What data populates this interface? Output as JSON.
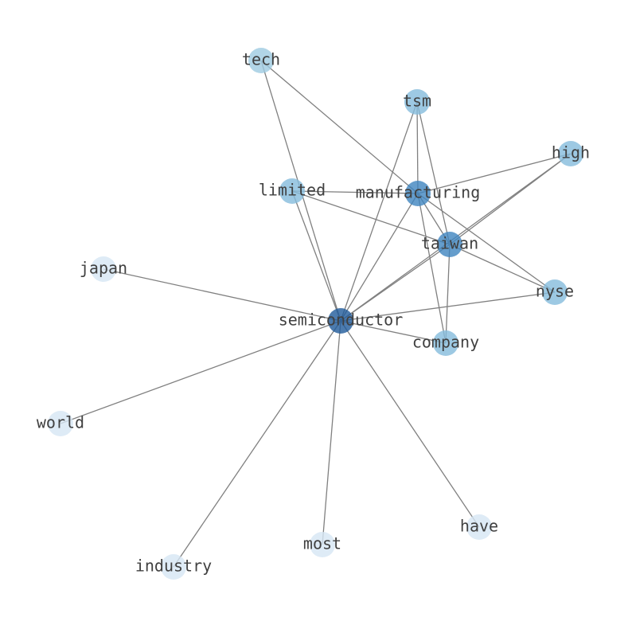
{
  "nodes": [
    {
      "label": "tech"
    },
    {
      "label": "tsm"
    },
    {
      "label": "high"
    },
    {
      "label": "limited"
    },
    {
      "label": "manufacturing"
    },
    {
      "label": "taiwan"
    },
    {
      "label": "japan"
    },
    {
      "label": "nyse"
    },
    {
      "label": "semiconductor"
    },
    {
      "label": "company"
    },
    {
      "label": "world"
    },
    {
      "label": "have"
    },
    {
      "label": "most"
    },
    {
      "label": "industry"
    }
  ]
}
